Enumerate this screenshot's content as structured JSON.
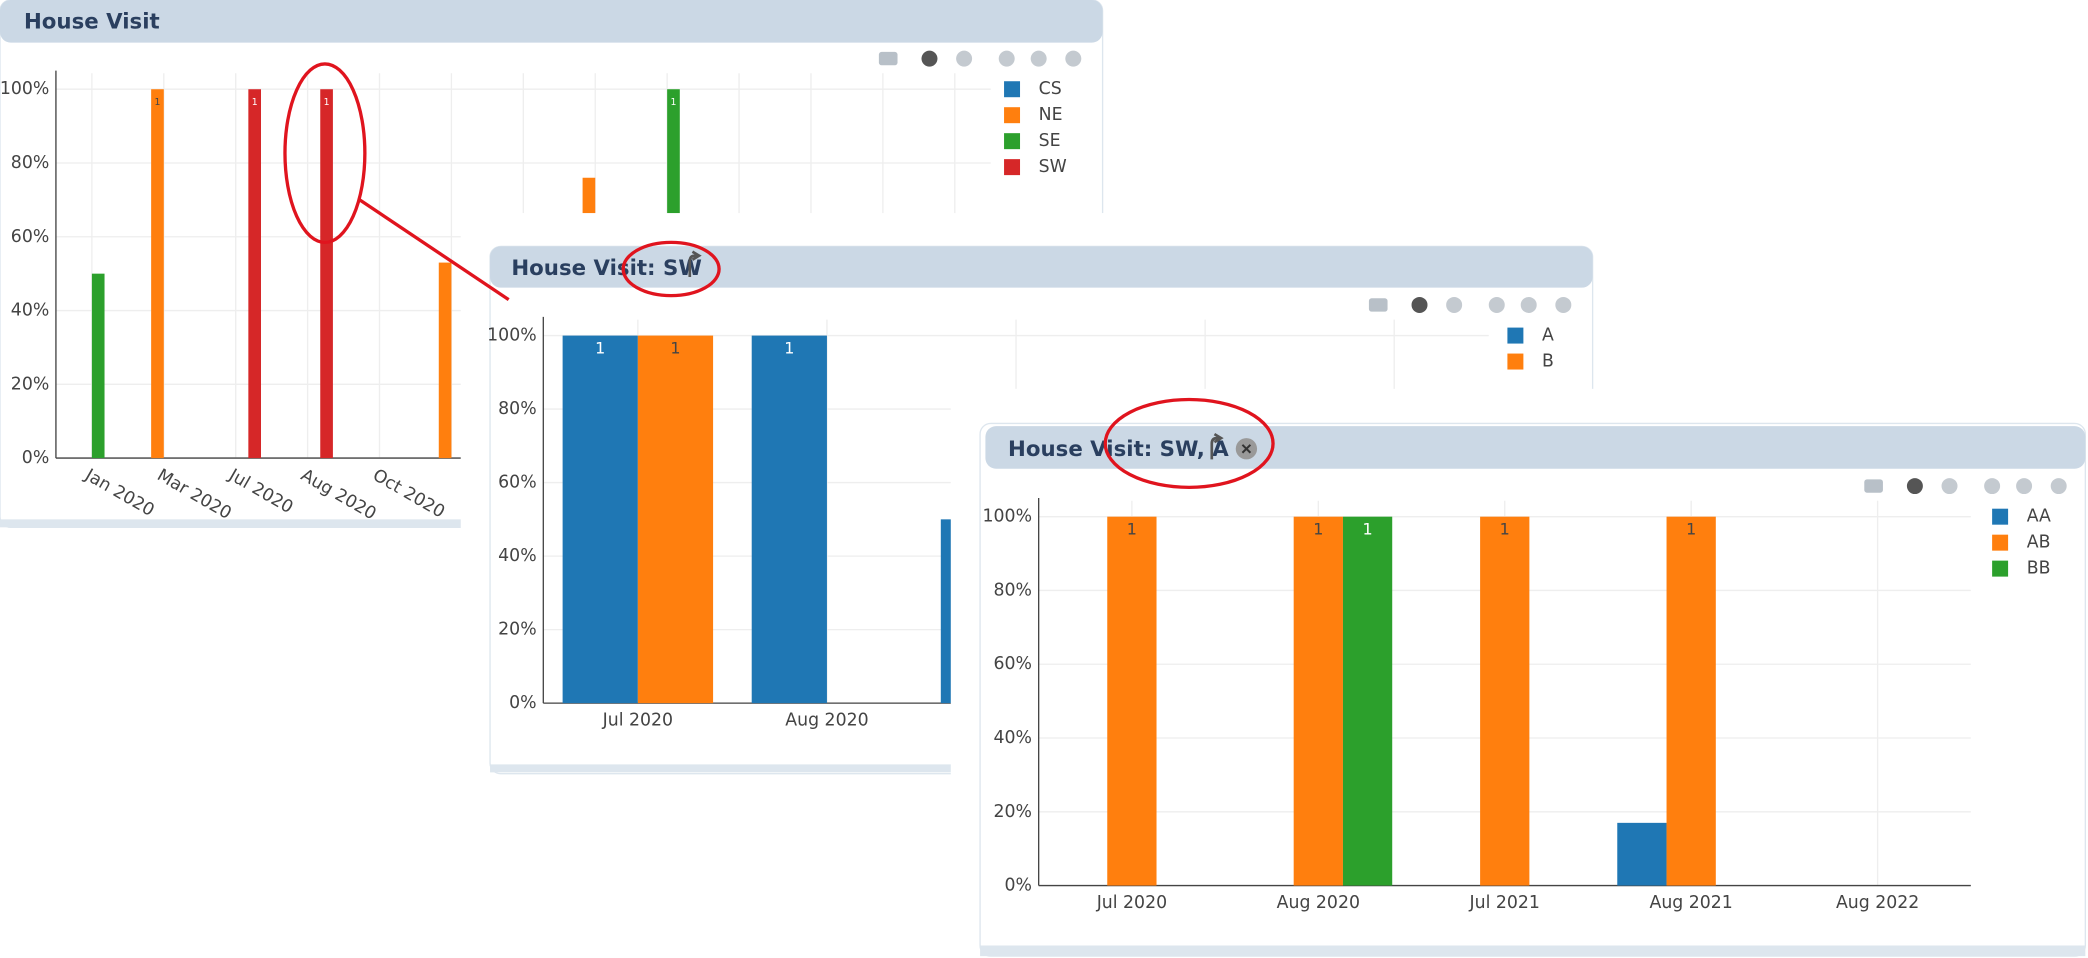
{
  "panels": [
    {
      "title": "House Visit",
      "chart_data": {
        "type": "bar",
        "categories": [
          "Jan 2020",
          "Mar 2020",
          "Jul 2020",
          "Aug 2020",
          "Oct 2020",
          null,
          null,
          null,
          null,
          null,
          null,
          null,
          null
        ],
        "series": [
          {
            "name": "CS",
            "color": "#1f77b4",
            "values": [
              null,
              null,
              null,
              null,
              null,
              null,
              null,
              null,
              null,
              null,
              null,
              null,
              null
            ]
          },
          {
            "name": "NE",
            "color": "#ff7f0e",
            "values": [
              null,
              100,
              null,
              null,
              null,
              53,
              null,
              76,
              null,
              null,
              null,
              null,
              null
            ],
            "value_labels": [
              null,
              "1",
              null,
              null,
              null,
              null,
              null,
              null,
              null,
              null,
              null,
              null,
              null
            ]
          },
          {
            "name": "SE",
            "color": "#2ca02c",
            "values": [
              50,
              null,
              null,
              null,
              null,
              null,
              null,
              null,
              100,
              null,
              null,
              null,
              null
            ],
            "value_labels": [
              null,
              null,
              null,
              null,
              null,
              null,
              null,
              null,
              "1",
              null,
              null,
              null,
              null
            ]
          },
          {
            "name": "SW",
            "color": "#d62728",
            "values": [
              null,
              null,
              100,
              100,
              null,
              null,
              null,
              null,
              null,
              null,
              null,
              null,
              null
            ],
            "value_labels": [
              null,
              null,
              "1",
              "1",
              null,
              null,
              null,
              null,
              null,
              null,
              null,
              null,
              null
            ]
          }
        ],
        "ylim": [
          0,
          100
        ],
        "yticks": [
          {
            "value": 0,
            "label": "0%"
          },
          {
            "value": 20,
            "label": "20%"
          },
          {
            "value": 40,
            "label": "40%"
          },
          {
            "value": 60,
            "label": "60%"
          },
          {
            "value": 80,
            "label": "80%"
          },
          {
            "value": 100,
            "label": "100%"
          }
        ],
        "grid": true,
        "legend": "top-right"
      }
    },
    {
      "title": "House Visit: SW",
      "chart_data": {
        "type": "bar",
        "categories": [
          "Jul 2020",
          "Aug 2020",
          null,
          null,
          null
        ],
        "series": [
          {
            "name": "A",
            "color": "#1f77b4",
            "values": [
              100,
              100,
              50,
              null,
              null
            ],
            "value_labels": [
              "1",
              "1",
              null,
              null,
              null
            ]
          },
          {
            "name": "B",
            "color": "#ff7f0e",
            "values": [
              100,
              null,
              null,
              null,
              null
            ],
            "value_labels": [
              "1",
              null,
              null,
              null,
              null
            ]
          }
        ],
        "ylim": [
          0,
          100
        ],
        "yticks": [
          {
            "value": 0,
            "label": "0%"
          },
          {
            "value": 20,
            "label": "20%"
          },
          {
            "value": 40,
            "label": "40%"
          },
          {
            "value": 60,
            "label": "60%"
          },
          {
            "value": 80,
            "label": "80%"
          },
          {
            "value": 100,
            "label": "100%"
          }
        ],
        "grid": true,
        "legend": "top-right"
      }
    },
    {
      "title": "House Visit: SW, A",
      "chart_data": {
        "type": "bar",
        "categories": [
          "Jul 2020",
          "Aug 2020",
          "Jul 2021",
          "Aug 2021",
          "Aug 2022"
        ],
        "series": [
          {
            "name": "AA",
            "color": "#1f77b4",
            "values": [
              null,
              null,
              null,
              17,
              null
            ]
          },
          {
            "name": "AB",
            "color": "#ff7f0e",
            "values": [
              100,
              100,
              100,
              100,
              null
            ],
            "value_labels": [
              "1",
              "1",
              "1",
              "1",
              null
            ]
          },
          {
            "name": "BB",
            "color": "#2ca02c",
            "values": [
              null,
              100,
              null,
              null,
              null
            ],
            "value_labels": [
              null,
              "1",
              null,
              null,
              null
            ]
          }
        ],
        "ylim": [
          0,
          100
        ],
        "yticks": [
          {
            "value": 0,
            "label": "0%"
          },
          {
            "value": 20,
            "label": "20%"
          },
          {
            "value": 40,
            "label": "40%"
          },
          {
            "value": 60,
            "label": "60%"
          },
          {
            "value": 80,
            "label": "80%"
          },
          {
            "value": 100,
            "label": "100%"
          }
        ],
        "grid": true,
        "legend": "top-right"
      }
    }
  ]
}
